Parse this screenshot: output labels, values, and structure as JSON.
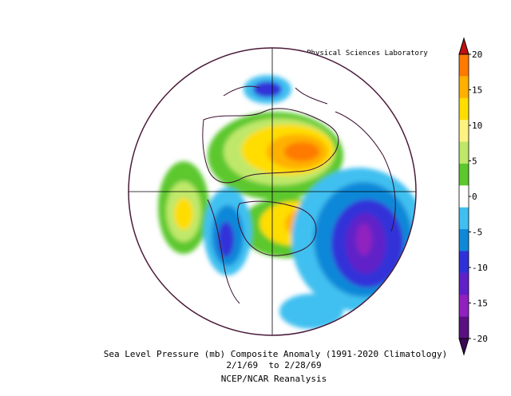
{
  "header": {
    "credit": "NOAA Physical Sciences Laboratory"
  },
  "caption": {
    "line1": "Sea Level Pressure (mb) Composite Anomaly (1991-2020 Climatology)",
    "line2": "2/1/69  to 2/28/69",
    "line3": "NCEP/NCAR Reanalysis"
  },
  "colorbar": {
    "labels": [
      "20",
      "15",
      "10",
      "5",
      "0",
      "-5",
      "-10",
      "-15",
      "-20"
    ],
    "colors": [
      "#ff7a00",
      "#ffb000",
      "#ffdd00",
      "#fff280",
      "#bfe86a",
      "#5cc82d",
      "#ffffff",
      "#40c0f0",
      "#1088d8",
      "#3030d8",
      "#6020c8",
      "#9020c0",
      "#5a1080"
    ],
    "top_color": "#c01010",
    "bottom_color": "#3a0a55"
  },
  "map_colors": {
    "border": "#4a1a3a",
    "gridline": "#000000",
    "land": "#3a1030"
  }
}
